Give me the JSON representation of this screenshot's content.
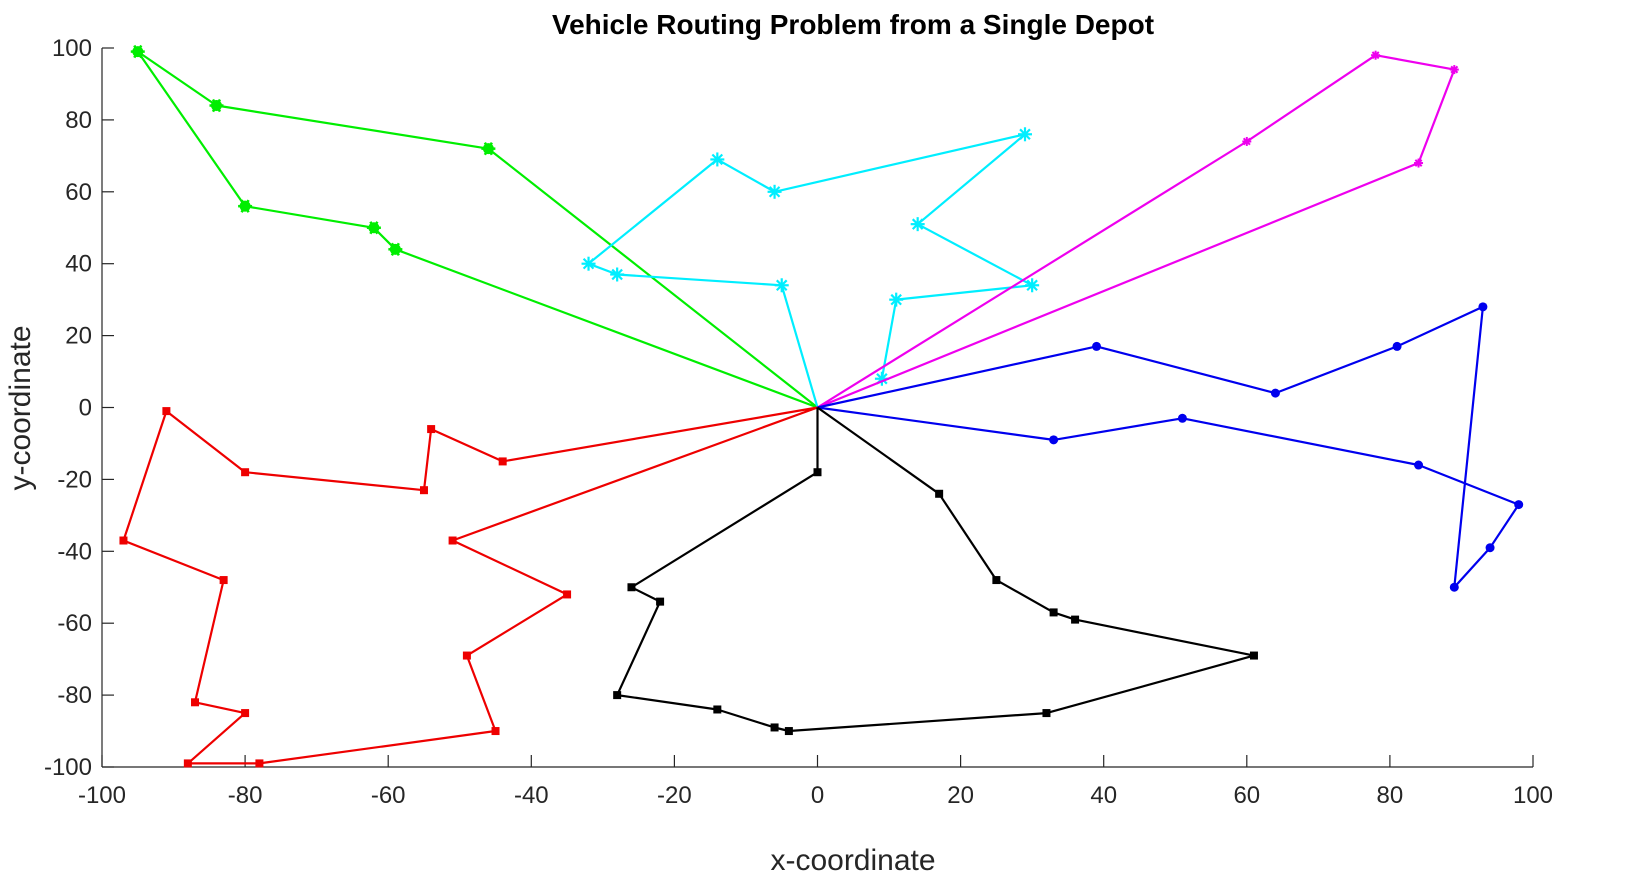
{
  "chart_data": {
    "type": "line",
    "title": "Vehicle Routing Problem from a Single Depot",
    "xlabel": "x-coordinate",
    "ylabel": "y-coordinate",
    "xlim": [
      -100,
      100
    ],
    "ylim": [
      -100,
      100
    ],
    "xticks": [
      -100,
      -80,
      -60,
      -40,
      -20,
      0,
      20,
      40,
      60,
      80,
      100
    ],
    "yticks": [
      -100,
      -80,
      -60,
      -40,
      -20,
      0,
      20,
      40,
      60,
      80,
      100
    ],
    "grid": false,
    "legend": "none",
    "depot": [
      0,
      0
    ],
    "series": [
      {
        "color": "#00ee00",
        "marker": "hexagram",
        "points": [
          [
            0,
            0
          ],
          [
            -46,
            72
          ],
          [
            -84,
            84
          ],
          [
            -95,
            99
          ],
          [
            -80,
            56
          ],
          [
            -62,
            50
          ],
          [
            -59,
            44
          ],
          [
            0,
            0
          ]
        ]
      },
      {
        "color": "#00eeff",
        "marker": "asterisk",
        "points": [
          [
            0,
            0
          ],
          [
            -5,
            34
          ],
          [
            -28,
            37
          ],
          [
            -32,
            40
          ],
          [
            -14,
            69
          ],
          [
            -6,
            60
          ],
          [
            29,
            76
          ],
          [
            14,
            51
          ],
          [
            30,
            34
          ],
          [
            11,
            30
          ],
          [
            9,
            8
          ]
        ]
      },
      {
        "color": "#ee00ee",
        "marker": "asterisk",
        "points": [
          [
            0,
            0
          ],
          [
            60,
            74
          ],
          [
            78,
            98
          ],
          [
            89,
            94
          ],
          [
            84,
            68
          ],
          [
            0,
            0
          ]
        ]
      },
      {
        "color": "#0000ee",
        "marker": "circle",
        "points": [
          [
            0,
            0
          ],
          [
            39,
            17
          ],
          [
            64,
            4
          ],
          [
            81,
            17
          ],
          [
            93,
            28
          ],
          [
            89,
            -50
          ],
          [
            94,
            -39
          ],
          [
            98,
            -27
          ],
          [
            84,
            -16
          ],
          [
            51,
            -3
          ],
          [
            33,
            -9
          ],
          [
            0,
            0
          ]
        ]
      },
      {
        "color": "#ee0000",
        "marker": "square",
        "points": [
          [
            0,
            0
          ],
          [
            -44,
            -15
          ],
          [
            -54,
            -6
          ],
          [
            -55,
            -23
          ],
          [
            -80,
            -18
          ],
          [
            -91,
            -1
          ],
          [
            -97,
            -37
          ],
          [
            -83,
            -48
          ],
          [
            -87,
            -82
          ],
          [
            -80,
            -85
          ],
          [
            -88,
            -99
          ],
          [
            -78,
            -99
          ],
          [
            -45,
            -90
          ],
          [
            -49,
            -69
          ],
          [
            -35,
            -52
          ],
          [
            -51,
            -37
          ],
          [
            0,
            0
          ]
        ]
      },
      {
        "color": "#000000",
        "marker": "square",
        "points": [
          [
            0,
            0
          ],
          [
            0,
            -18
          ],
          [
            -26,
            -50
          ],
          [
            -22,
            -54
          ],
          [
            -28,
            -80
          ],
          [
            -14,
            -84
          ],
          [
            -6,
            -89
          ],
          [
            -4,
            -90
          ],
          [
            32,
            -85
          ],
          [
            61,
            -69
          ],
          [
            36,
            -59
          ],
          [
            33,
            -57
          ],
          [
            25,
            -48
          ],
          [
            17,
            -24
          ],
          [
            0,
            0
          ]
        ]
      }
    ]
  }
}
